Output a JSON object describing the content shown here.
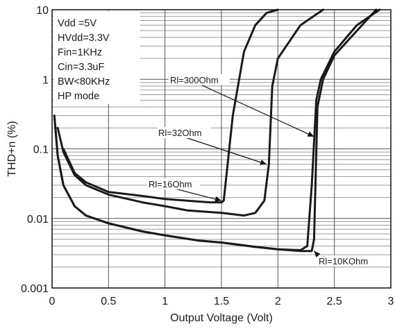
{
  "chart_data": {
    "type": "line",
    "title": "",
    "xlabel": "Output Voltage (Volt)",
    "ylabel": "THD+n (%)",
    "xlim": [
      0,
      3
    ],
    "ylim": [
      0.001,
      10
    ],
    "y_scale": "log",
    "grid": true,
    "x_ticks": [
      0,
      0.5,
      1,
      1.5,
      2,
      2.5,
      3
    ],
    "x_tick_labels": [
      "0",
      "0.5",
      "1",
      "1.5",
      "2",
      "2.5",
      "3"
    ],
    "y_ticks": [
      0.001,
      0.01,
      0.1,
      1,
      10
    ],
    "y_tick_labels": [
      "0.001",
      "0.01",
      "0.1",
      "1",
      "10"
    ],
    "conditions": [
      "Vdd =5V",
      "HVdd=3.3V",
      "Fin=1KHz",
      "Cin=3.3uF",
      "BW<80KHz",
      "HP mode"
    ],
    "series": [
      {
        "name": "Rl=16Ohm",
        "x": [
          0.1,
          0.2,
          0.3,
          0.5,
          0.8,
          1.0,
          1.2,
          1.4,
          1.5,
          1.52,
          1.6,
          1.7,
          1.8,
          1.9,
          2.0
        ],
        "y": [
          0.1,
          0.045,
          0.033,
          0.024,
          0.021,
          0.019,
          0.018,
          0.017,
          0.017,
          0.018,
          0.3,
          2.5,
          6.0,
          9.0,
          10.0
        ]
      },
      {
        "name": "Rl=32Ohm",
        "x": [
          0.05,
          0.1,
          0.2,
          0.3,
          0.5,
          0.8,
          1.0,
          1.2,
          1.5,
          1.7,
          1.8,
          1.88,
          1.92,
          1.95,
          2.0,
          2.2,
          2.4
        ],
        "y": [
          0.2,
          0.09,
          0.042,
          0.03,
          0.022,
          0.017,
          0.015,
          0.013,
          0.012,
          0.011,
          0.012,
          0.018,
          0.06,
          0.8,
          2.0,
          6.0,
          10.0
        ]
      },
      {
        "name": "Rl=300Ohm",
        "x": [
          0.02,
          0.05,
          0.1,
          0.2,
          0.3,
          0.5,
          0.8,
          1.0,
          1.3,
          1.5,
          1.8,
          2.0,
          2.2,
          2.26,
          2.3,
          2.34,
          2.38,
          2.5,
          2.7,
          2.9
        ],
        "y": [
          0.3,
          0.08,
          0.03,
          0.015,
          0.011,
          0.0085,
          0.0065,
          0.0057,
          0.0048,
          0.0045,
          0.0039,
          0.0036,
          0.0035,
          0.004,
          0.03,
          0.5,
          1.0,
          2.5,
          6.0,
          10.0
        ]
      },
      {
        "name": "Rl=10KOhm",
        "x": [
          0.02,
          0.05,
          0.1,
          0.2,
          0.3,
          0.5,
          0.8,
          1.0,
          1.3,
          1.5,
          1.8,
          2.0,
          2.2,
          2.3,
          2.32,
          2.35,
          2.4,
          2.5,
          2.7,
          2.87
        ],
        "y": [
          0.3,
          0.08,
          0.03,
          0.015,
          0.011,
          0.0085,
          0.0065,
          0.0057,
          0.0048,
          0.0045,
          0.0039,
          0.0036,
          0.0034,
          0.0034,
          0.005,
          0.4,
          1.0,
          2.2,
          5.0,
          10.0
        ]
      }
    ],
    "annotations": [
      {
        "text": "Rl=300Ohm",
        "series": "Rl=300Ohm",
        "target": [
          2.32,
          0.15
        ]
      },
      {
        "text": "Rl=32Ohm",
        "series": "Rl=32Ohm",
        "target": [
          1.9,
          0.06
        ]
      },
      {
        "text": "Rl=16Ohm",
        "series": "Rl=16Ohm",
        "target": [
          1.5,
          0.018
        ]
      },
      {
        "text": "Rl=10KOhm",
        "series": "Rl=10KOhm",
        "target": [
          2.32,
          0.0034
        ]
      }
    ]
  }
}
